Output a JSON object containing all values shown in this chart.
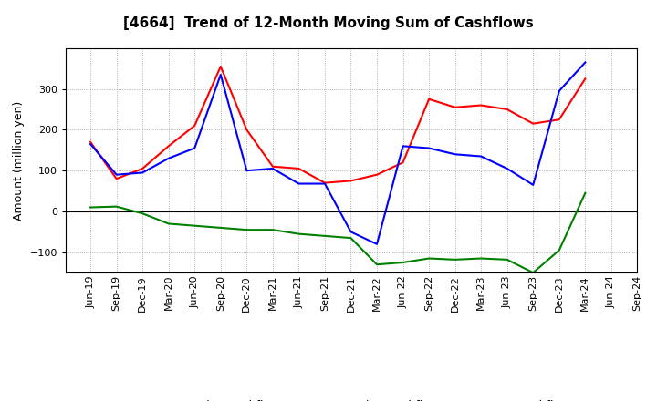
{
  "title": "[4664]  Trend of 12-Month Moving Sum of Cashflows",
  "ylabel": "Amount (million yen)",
  "x_labels": [
    "Jun-19",
    "Sep-19",
    "Dec-19",
    "Mar-20",
    "Jun-20",
    "Sep-20",
    "Dec-20",
    "Mar-21",
    "Jun-21",
    "Sep-21",
    "Dec-21",
    "Mar-22",
    "Jun-22",
    "Sep-22",
    "Dec-22",
    "Mar-23",
    "Jun-23",
    "Sep-23",
    "Dec-23",
    "Mar-24",
    "Jun-24",
    "Sep-24"
  ],
  "operating": [
    170,
    80,
    105,
    160,
    210,
    355,
    200,
    110,
    105,
    70,
    75,
    90,
    120,
    275,
    255,
    260,
    250,
    215,
    225,
    325,
    null,
    null
  ],
  "investing": [
    10,
    12,
    -5,
    -30,
    -35,
    -40,
    -45,
    -45,
    -55,
    -60,
    -65,
    -130,
    -125,
    -115,
    -118,
    -115,
    -118,
    -150,
    -95,
    45,
    null,
    null
  ],
  "free": [
    165,
    90,
    95,
    130,
    155,
    335,
    100,
    105,
    68,
    68,
    -50,
    -80,
    160,
    155,
    140,
    135,
    105,
    65,
    295,
    365,
    null,
    null
  ],
  "operating_color": "#ff0000",
  "investing_color": "#008000",
  "free_color": "#0000ff",
  "bg_color": "#ffffff",
  "plot_bg_color": "#ffffff",
  "grid_color": "#999999",
  "ylim": [
    -150,
    400
  ],
  "yticks": [
    -100,
    0,
    100,
    200,
    300
  ],
  "title_fontsize": 11,
  "legend_fontsize": 9,
  "axis_fontsize": 8,
  "ylabel_fontsize": 9
}
